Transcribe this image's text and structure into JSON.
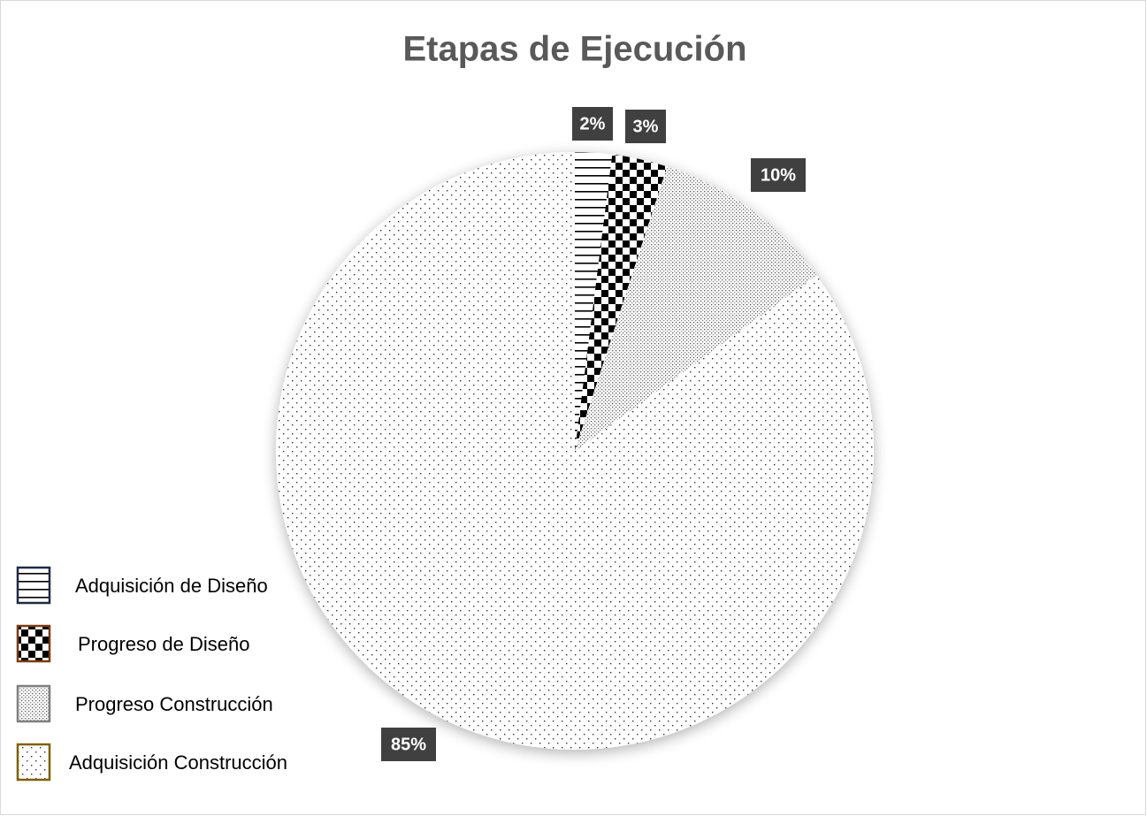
{
  "chart_data": {
    "type": "pie",
    "title": "Etapas de Ejecución",
    "categories": [
      "Adquisición de Diseño",
      "Progreso de Diseño",
      "Progreso Construcción",
      "Adquisición Construcción"
    ],
    "values": [
      2,
      3,
      10,
      85
    ],
    "value_labels": [
      "2%",
      "3%",
      "10%",
      "85%"
    ],
    "patterns": [
      "horizontal-lines",
      "checker",
      "dense-dots",
      "sparse-dots"
    ],
    "legend": "left"
  }
}
